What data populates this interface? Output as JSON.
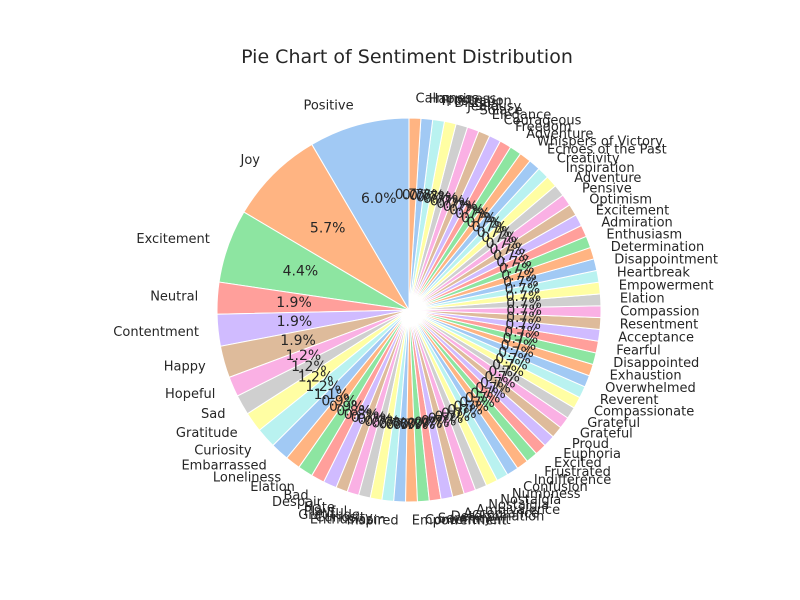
{
  "chart_data": {
    "type": "pie",
    "title": "Pie Chart of Sentiment Distribution",
    "start_angle_deg": 90,
    "direction": "counterclockwise",
    "colors": [
      "#a1c9f4",
      "#ffb482",
      "#8de5a1",
      "#ff9f9b",
      "#d0bbff",
      "#debb9b",
      "#fab0e4",
      "#cfcfcf",
      "#fffea3",
      "#b9f2f0"
    ],
    "slices": [
      {
        "label": "Positive",
        "value": 6.0
      },
      {
        "label": "Joy",
        "value": 5.7
      },
      {
        "label": "Excitement",
        "value": 4.4
      },
      {
        "label": "Neutral",
        "value": 1.9
      },
      {
        "label": "Contentment",
        "value": 1.9
      },
      {
        "label": "Happy",
        "value": 1.9
      },
      {
        "label": "Hopeful",
        "value": 1.2
      },
      {
        "label": "Sad",
        "value": 1.2
      },
      {
        "label": "Gratitude",
        "value": 1.2
      },
      {
        "label": "Curiosity",
        "value": 1.2
      },
      {
        "label": "Embarrassed",
        "value": 1.1
      },
      {
        "label": "Loneliness",
        "value": 0.9
      },
      {
        "label": "Elation",
        "value": 0.9
      },
      {
        "label": "Bad",
        "value": 0.8
      },
      {
        "label": "Despair",
        "value": 0.8
      },
      {
        "label": "Hate",
        "value": 0.7
      },
      {
        "label": "Playful",
        "value": 0.7
      },
      {
        "label": "Gratitude",
        "value": 0.7
      },
      {
        "label": "Curiosity",
        "value": 0.7
      },
      {
        "label": "Enthusiasm",
        "value": 0.7
      },
      {
        "label": "Inspired",
        "value": 0.7
      },
      {
        "label": "Empowerment",
        "value": 0.7
      },
      {
        "label": "Contentment",
        "value": 0.7
      },
      {
        "label": "Serenity",
        "value": 0.7
      },
      {
        "label": "Determination",
        "value": 0.7
      },
      {
        "label": "Acceptance",
        "value": 0.7
      },
      {
        "label": "Ambivalence",
        "value": 0.7
      },
      {
        "label": "Nostalgia",
        "value": 0.7
      },
      {
        "label": "Nostalgia",
        "value": 0.7
      },
      {
        "label": "Numbness",
        "value": 0.7
      },
      {
        "label": "Confusion",
        "value": 0.7
      },
      {
        "label": "Indifference",
        "value": 0.7
      },
      {
        "label": "Frustrated",
        "value": 0.7
      },
      {
        "label": "Excited",
        "value": 0.7
      },
      {
        "label": "Euphoria",
        "value": 0.7
      },
      {
        "label": "Proud",
        "value": 0.7
      },
      {
        "label": "Grateful",
        "value": 0.7
      },
      {
        "label": "Grateful",
        "value": 0.7
      },
      {
        "label": "Compassionate",
        "value": 0.7
      },
      {
        "label": "Reverent",
        "value": 0.7
      },
      {
        "label": "Overwhelmed",
        "value": 0.7
      },
      {
        "label": "Exhaustion",
        "value": 0.7
      },
      {
        "label": "Disappointed",
        "value": 0.7
      },
      {
        "label": "Fearful",
        "value": 0.7
      },
      {
        "label": "Acceptance",
        "value": 0.7
      },
      {
        "label": "Resentment",
        "value": 0.7
      },
      {
        "label": "Compassion",
        "value": 0.7
      },
      {
        "label": "Elation",
        "value": 0.7
      },
      {
        "label": "Empowerment",
        "value": 0.7
      },
      {
        "label": "Heartbreak",
        "value": 0.7
      },
      {
        "label": "Disappointment",
        "value": 0.7
      },
      {
        "label": "Determination",
        "value": 0.7
      },
      {
        "label": "Enthusiasm",
        "value": 0.7
      },
      {
        "label": "Admiration",
        "value": 0.7
      },
      {
        "label": "Excitement",
        "value": 0.7
      },
      {
        "label": "Optimism",
        "value": 0.7
      },
      {
        "label": "Pensive",
        "value": 0.7
      },
      {
        "label": "Adventure",
        "value": 0.7
      },
      {
        "label": "Inspiration",
        "value": 0.7
      },
      {
        "label": "Creativity",
        "value": 0.7
      },
      {
        "label": "Echoes of the Past",
        "value": 0.7
      },
      {
        "label": "Whispers of Victory",
        "value": 0.7
      },
      {
        "label": "Adventure",
        "value": 0.7
      },
      {
        "label": "Freedom",
        "value": 0.7
      },
      {
        "label": "Courageous",
        "value": 0.7
      },
      {
        "label": "Elegance",
        "value": 0.7
      },
      {
        "label": "Solace",
        "value": 0.7
      },
      {
        "label": "Jealousy",
        "value": 0.7
      },
      {
        "label": "Disgust",
        "value": 0.7
      },
      {
        "label": "Frustration",
        "value": 0.7
      },
      {
        "label": "Happiness",
        "value": 0.7
      },
      {
        "label": "Calmness",
        "value": 0.7
      }
    ]
  }
}
